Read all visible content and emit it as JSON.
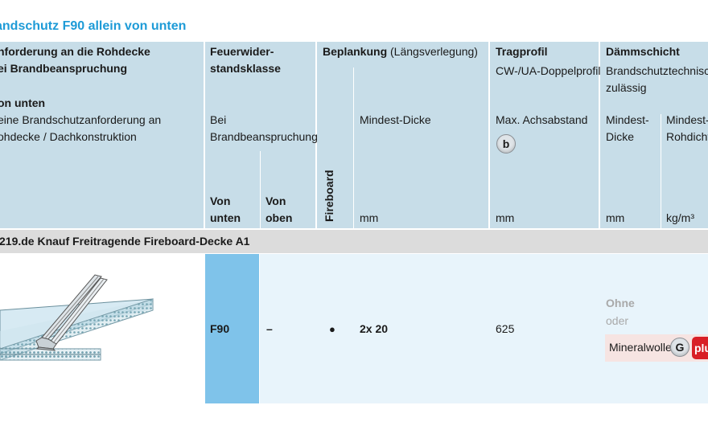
{
  "title": "andschutz F90 allein von unten",
  "header": {
    "col1": {
      "line1": "nforderung an die Rohdecke",
      "line2": "ei Brandbeanspruchung",
      "line3": "on unten",
      "line4": "eine Brandschutzanforderung an",
      "line5": "ohdecke / Dachkonstruktion"
    },
    "col2": {
      "line1": "Feuerwider-",
      "line2": "standsklasse",
      "sub1": "Bei",
      "sub2": "Brandbeanspruchung",
      "von_unten_1": "Von",
      "von_unten_2": "unten",
      "von_oben_1": "Von",
      "von_oben_2": "oben"
    },
    "col3": {
      "title_bold": "Beplankung",
      "title_normal": "(Längsverlegung)",
      "vertical": "Fireboard",
      "sub": "Mindest-Dicke",
      "unit": "mm"
    },
    "col4": {
      "title": "Tragprofil",
      "sub1": "CW-/UA-Doppelprofil",
      "sub2": "Max. Achsabstand",
      "badge": "b",
      "unit": "mm"
    },
    "col5": {
      "title": "Dämmschicht",
      "sub1": "Brandschutztechnisch",
      "sub2": "zulässig",
      "dicke1": "Mindest-",
      "dicke2": "Dicke",
      "dicke_unit": "mm",
      "dichte1": "Mindest-",
      "dichte2": "Rohdicht",
      "dichte_unit": "kg/m³"
    }
  },
  "section": {
    "label": "219.de Knauf Freitragende Fireboard-Decke A1"
  },
  "row": {
    "class_unten": "F90",
    "class_oben": "–",
    "bullet": "●",
    "thickness": "2x 20",
    "spacing": "625",
    "insulation_none": "Ohne",
    "insulation_or": "oder",
    "insulation_material": "Mineralwolle",
    "insulation_badge": "G",
    "insulation_plus": "plu"
  },
  "colors": {
    "title": "#1e9bd7",
    "header_bg": "#c7dde8",
    "section_bg": "#dcdcdc",
    "row_bg": "#e8f4fb",
    "highlight": "#7fc3ea",
    "plus_red": "#d81f26"
  }
}
